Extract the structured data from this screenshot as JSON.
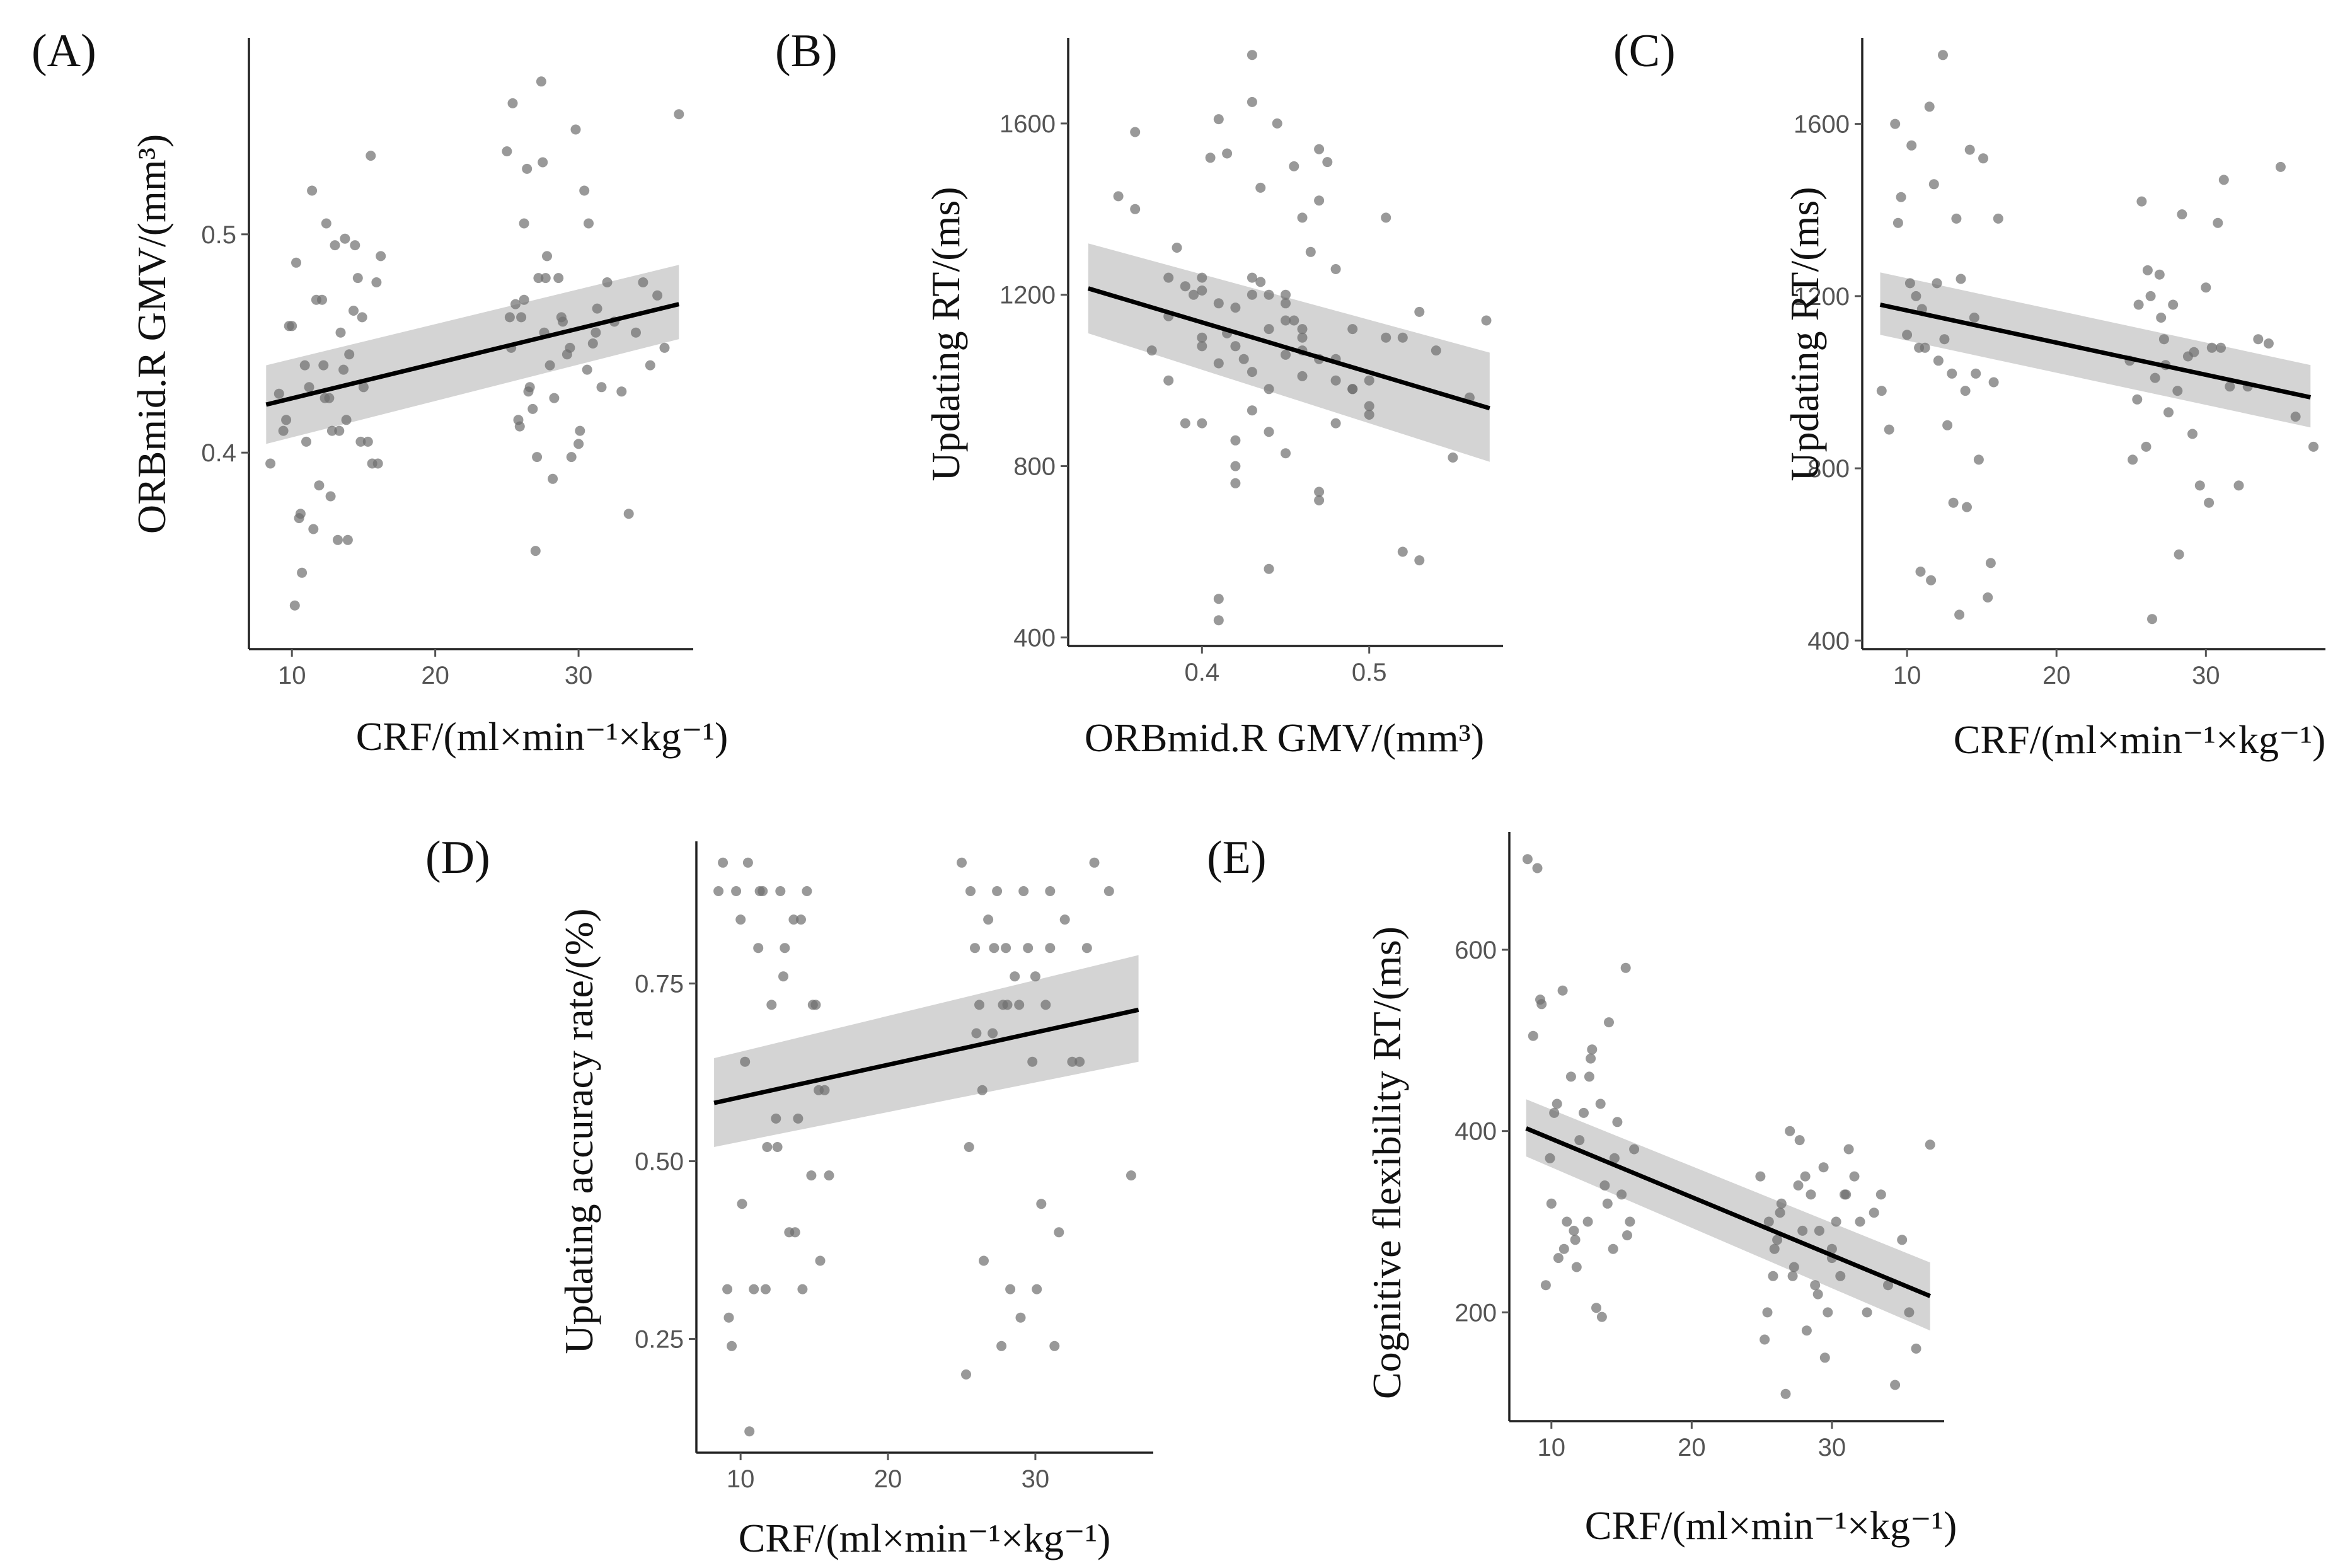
{
  "colors": {
    "points": "#6e6e6e",
    "ci_band": "#bdbdbd",
    "fit_line": "#000000",
    "axis": "#222222"
  },
  "chart_data": [
    {
      "panel": "(A)",
      "type": "scatter",
      "xlabel": "CRF/(ml×min⁻¹×kg⁻¹)",
      "ylabel": "ORBmid.R GMV/(mm³)",
      "xlim": [
        7,
        38
      ],
      "ylim": [
        0.31,
        0.59
      ],
      "xticks": [
        10,
        20,
        30
      ],
      "xtick_labels": [
        "10",
        "20",
        "30"
      ],
      "yticks": [
        0.4,
        0.5
      ],
      "ytick_labels": [
        "0.4",
        "0.5"
      ],
      "fit": {
        "x": [
          8.2,
          37
        ],
        "y": [
          0.422,
          0.468
        ],
        "ci_lower": [
          0.404,
          0.452
        ],
        "ci_upper": [
          0.44,
          0.486
        ]
      },
      "x": [
        8.5,
        9.1,
        9.6,
        10.0,
        10.2,
        10.5,
        10.7,
        11.0,
        11.2,
        11.4,
        11.7,
        11.9,
        12.2,
        12.4,
        12.6,
        12.8,
        13.0,
        13.2,
        13.4,
        13.6,
        13.8,
        14.0,
        14.3,
        14.6,
        15.0,
        15.3,
        15.6,
        15.9,
        16.2,
        9.8,
        10.3,
        10.9,
        11.5,
        12.1,
        12.7,
        13.3,
        13.9,
        14.4,
        14.9,
        15.5,
        16.0,
        9.4,
        10.6,
        12.3,
        13.7,
        14.8,
        25.0,
        25.2,
        25.4,
        25.6,
        25.8,
        26.0,
        26.2,
        26.4,
        26.6,
        26.8,
        27.0,
        27.2,
        27.4,
        27.6,
        27.8,
        28.0,
        28.3,
        28.6,
        28.9,
        29.2,
        29.5,
        29.8,
        30.1,
        30.4,
        30.7,
        31.0,
        31.3,
        31.6,
        32.0,
        32.5,
        33.0,
        33.5,
        34.0,
        34.5,
        35.0,
        35.5,
        36.0,
        37.0,
        25.3,
        25.9,
        26.5,
        27.1,
        27.7,
        28.2,
        28.8,
        29.4,
        30.0,
        30.6,
        31.2,
        26.2,
        27.5
      ],
      "y": [
        0.395,
        0.427,
        0.415,
        0.458,
        0.33,
        0.37,
        0.345,
        0.405,
        0.43,
        0.52,
        0.47,
        0.385,
        0.44,
        0.505,
        0.425,
        0.41,
        0.495,
        0.36,
        0.455,
        0.438,
        0.415,
        0.445,
        0.465,
        0.48,
        0.43,
        0.405,
        0.395,
        0.478,
        0.49,
        0.458,
        0.487,
        0.44,
        0.365,
        0.47,
        0.38,
        0.41,
        0.36,
        0.495,
        0.462,
        0.536,
        0.395,
        0.41,
        0.372,
        0.425,
        0.498,
        0.405,
        0.538,
        0.462,
        0.56,
        0.468,
        0.415,
        0.462,
        0.505,
        0.53,
        0.43,
        0.42,
        0.355,
        0.48,
        0.57,
        0.455,
        0.49,
        0.44,
        0.425,
        0.48,
        0.46,
        0.445,
        0.398,
        0.548,
        0.41,
        0.52,
        0.505,
        0.45,
        0.466,
        0.43,
        0.478,
        0.46,
        0.428,
        0.372,
        0.455,
        0.478,
        0.44,
        0.472,
        0.448,
        0.555,
        0.448,
        0.412,
        0.428,
        0.398,
        0.48,
        0.388,
        0.462,
        0.448,
        0.404,
        0.438,
        0.455,
        0.47,
        0.533
      ],
      "title": ""
    },
    {
      "panel": "(B)",
      "type": "scatter",
      "xlabel": "ORBmid.R GMV/(mm³)",
      "ylabel": "Updating RT/(ms)",
      "xlim": [
        0.32,
        0.58
      ],
      "ylim": [
        380,
        1800
      ],
      "xticks": [
        0.4,
        0.5
      ],
      "xtick_labels": [
        "0.4",
        "0.5"
      ],
      "yticks": [
        400,
        800,
        1200,
        1600
      ],
      "ytick_labels": [
        "400",
        "800",
        "1200",
        "1600"
      ],
      "fit": {
        "x": [
          0.332,
          0.572
        ],
        "y": [
          1215,
          935
        ],
        "ci_lower": [
          1110,
          810
        ],
        "ci_upper": [
          1320,
          1065
        ]
      },
      "x": [
        0.35,
        0.36,
        0.37,
        0.38,
        0.385,
        0.39,
        0.395,
        0.4,
        0.4,
        0.405,
        0.41,
        0.41,
        0.415,
        0.42,
        0.42,
        0.425,
        0.43,
        0.43,
        0.435,
        0.44,
        0.44,
        0.445,
        0.45,
        0.45,
        0.455,
        0.46,
        0.46,
        0.465,
        0.47,
        0.47,
        0.475,
        0.48,
        0.48,
        0.49,
        0.49,
        0.5,
        0.5,
        0.51,
        0.52,
        0.53,
        0.54,
        0.55,
        0.56,
        0.57,
        0.36,
        0.38,
        0.4,
        0.41,
        0.42,
        0.43,
        0.44,
        0.45,
        0.46,
        0.47,
        0.48,
        0.39,
        0.41,
        0.43,
        0.45,
        0.47,
        0.4,
        0.42,
        0.44,
        0.46,
        0.48,
        0.5,
        0.52,
        0.43,
        0.45,
        0.41,
        0.44,
        0.47,
        0.49,
        0.51,
        0.42,
        0.38,
        0.4,
        0.43,
        0.46,
        0.53,
        0.455,
        0.415,
        0.435
      ],
      "y": [
        1430,
        1580,
        1070,
        1150,
        1310,
        1220,
        1200,
        1240,
        900,
        1520,
        1610,
        1180,
        1530,
        1170,
        800,
        1050,
        1760,
        1200,
        1230,
        1120,
        880,
        1600,
        1180,
        1060,
        1140,
        1100,
        1380,
        1300,
        1540,
        1050,
        1510,
        1260,
        900,
        1120,
        980,
        1000,
        920,
        1380,
        1100,
        1160,
        1070,
        820,
        960,
        1140,
        1400,
        1240,
        1100,
        490,
        1080,
        1240,
        980,
        1200,
        1120,
        1420,
        1000,
        900,
        440,
        1020,
        1140,
        740,
        1080,
        860,
        560,
        1010,
        1050,
        940,
        600,
        1650,
        830,
        1040,
        1200,
        720,
        980,
        1100,
        760,
        1000,
        1210,
        930,
        1070,
        580,
        1500,
        1110,
        1450
      ],
      "title": ""
    },
    {
      "panel": "(C)",
      "type": "scatter",
      "xlabel": "CRF/(ml×min⁻¹×kg⁻¹)",
      "ylabel": "Updating RT/(ms)",
      "xlim": [
        7,
        38
      ],
      "ylim": [
        380,
        1800
      ],
      "xticks": [
        10,
        20,
        30
      ],
      "xtick_labels": [
        "10",
        "20",
        "30"
      ],
      "yticks": [
        400,
        800,
        1200,
        1600
      ],
      "ytick_labels": [
        "400",
        "800",
        "1200",
        "1600"
      ],
      "fit": {
        "x": [
          8.2,
          37
        ],
        "y": [
          1180,
          965
        ],
        "ci_lower": [
          1110,
          895
        ],
        "ci_upper": [
          1255,
          1040
        ]
      },
      "x": [
        8.3,
        8.8,
        9.2,
        9.6,
        10.0,
        10.3,
        10.6,
        10.9,
        11.2,
        11.5,
        11.8,
        12.1,
        12.4,
        12.7,
        13.0,
        13.3,
        13.6,
        13.9,
        14.2,
        14.5,
        14.8,
        15.1,
        15.4,
        15.8,
        16.1,
        9.4,
        10.8,
        11.6,
        12.5,
        13.5,
        14.6,
        15.6,
        10.2,
        11.0,
        12.0,
        13.1,
        14.0,
        24.9,
        25.1,
        25.4,
        25.7,
        26.0,
        26.3,
        26.6,
        26.9,
        27.2,
        27.5,
        27.8,
        28.1,
        28.4,
        28.8,
        29.2,
        29.6,
        30.0,
        30.4,
        30.8,
        31.2,
        31.6,
        32.2,
        32.8,
        33.5,
        34.2,
        35.0,
        36.0,
        37.2,
        25.5,
        26.4,
        27.3,
        28.2,
        29.1,
        30.2,
        31.0,
        26.1,
        27.0
      ],
      "y": [
        980,
        890,
        1600,
        1430,
        1110,
        1550,
        1200,
        560,
        1080,
        1640,
        1460,
        1050,
        1760,
        900,
        1020,
        1380,
        1240,
        980,
        1540,
        1150,
        820,
        1520,
        500,
        1000,
        1380,
        1370,
        1080,
        540,
        1100,
        460,
        1020,
        580,
        1230,
        1170,
        1230,
        720,
        710,
        1050,
        820,
        960,
        1420,
        850,
        1200,
        1010,
        1250,
        1100,
        930,
        1180,
        980,
        1390,
        1060,
        1070,
        760,
        1220,
        1080,
        1370,
        1470,
        990,
        760,
        990,
        1100,
        1090,
        1500,
        920,
        850,
        1180,
        450,
        1040,
        600,
        880,
        720,
        1080,
        1260,
        1150
      ],
      "title": ""
    },
    {
      "panel": "(D)",
      "type": "scatter",
      "xlabel": "CRF/(ml×min⁻¹×kg⁻¹)",
      "ylabel": "Updating accuracy rate/(%)",
      "xlim": [
        7,
        38
      ],
      "ylim": [
        0.09,
        0.95
      ],
      "xticks": [
        10,
        20,
        30
      ],
      "xtick_labels": [
        "10",
        "20",
        "30"
      ],
      "yticks": [
        0.25,
        0.5,
        0.75
      ],
      "ytick_labels": [
        "0.25",
        "0.50",
        "0.75"
      ],
      "fit": {
        "x": [
          8.2,
          37
        ],
        "y": [
          0.582,
          0.713
        ],
        "ci_lower": [
          0.52,
          0.64
        ],
        "ci_upper": [
          0.645,
          0.79
        ]
      },
      "x": [
        8.5,
        8.8,
        9.1,
        9.4,
        9.7,
        10.0,
        10.3,
        10.6,
        10.9,
        11.2,
        11.5,
        11.8,
        12.1,
        12.4,
        12.7,
        13.0,
        13.3,
        13.6,
        13.9,
        14.2,
        14.5,
        14.8,
        15.1,
        15.4,
        15.7,
        16.0,
        9.2,
        10.5,
        11.7,
        12.9,
        14.1,
        15.3,
        10.1,
        11.3,
        12.5,
        13.7,
        14.9,
        25.0,
        25.3,
        25.6,
        25.9,
        26.2,
        26.5,
        26.8,
        27.1,
        27.4,
        27.7,
        28.0,
        28.3,
        28.6,
        28.9,
        29.2,
        29.5,
        29.8,
        30.1,
        30.4,
        30.7,
        31.0,
        31.3,
        31.6,
        32.0,
        32.5,
        33.0,
        34.0,
        35.0,
        36.5,
        25.5,
        26.4,
        27.2,
        28.1,
        29.0,
        30.0,
        31.0,
        26.0,
        27.8,
        33.5
      ],
      "y": [
        0.88,
        0.92,
        0.32,
        0.24,
        0.88,
        0.84,
        0.64,
        0.12,
        0.32,
        0.8,
        0.88,
        0.52,
        0.72,
        0.56,
        0.88,
        0.8,
        0.4,
        0.84,
        0.56,
        0.32,
        0.88,
        0.48,
        0.72,
        0.36,
        0.6,
        0.48,
        0.28,
        0.92,
        0.32,
        0.76,
        0.84,
        0.6,
        0.44,
        0.88,
        0.52,
        0.4,
        0.72,
        0.92,
        0.2,
        0.88,
        0.8,
        0.72,
        0.36,
        0.84,
        0.68,
        0.88,
        0.24,
        0.8,
        0.32,
        0.76,
        0.72,
        0.88,
        0.8,
        0.64,
        0.32,
        0.44,
        0.72,
        0.8,
        0.24,
        0.4,
        0.84,
        0.64,
        0.64,
        0.92,
        0.88,
        0.48,
        0.52,
        0.6,
        0.8,
        0.72,
        0.28,
        0.76,
        0.88,
        0.68,
        0.72,
        0.8
      ],
      "title": ""
    },
    {
      "panel": "(E)",
      "type": "scatter",
      "xlabel": "CRF/(ml×min⁻¹×kg⁻¹)",
      "ylabel": "Cognitive flexibility  RT/(ms)",
      "xlim": [
        7,
        38
      ],
      "ylim": [
        80,
        730
      ],
      "xticks": [
        10,
        20,
        30
      ],
      "xtick_labels": [
        "10",
        "20",
        "30"
      ],
      "yticks": [
        200,
        400,
        600
      ],
      "ytick_labels": [
        "200",
        "400",
        "600"
      ],
      "fit": {
        "x": [
          8.2,
          37
        ],
        "y": [
          403,
          218
        ],
        "ci_lower": [
          372,
          180
        ],
        "ci_upper": [
          435,
          255
        ]
      },
      "x": [
        8.3,
        8.7,
        9.0,
        9.3,
        9.6,
        9.9,
        10.2,
        10.5,
        10.8,
        11.1,
        11.4,
        11.7,
        12.0,
        12.3,
        12.6,
        12.9,
        13.2,
        13.5,
        13.8,
        14.1,
        14.4,
        14.7,
        15.0,
        15.3,
        15.6,
        15.9,
        9.2,
        10.0,
        10.9,
        11.8,
        12.7,
        13.6,
        14.5,
        15.4,
        10.4,
        11.6,
        12.8,
        14.0,
        24.9,
        25.2,
        25.5,
        25.8,
        26.1,
        26.4,
        26.7,
        27.0,
        27.3,
        27.6,
        27.9,
        28.2,
        28.5,
        28.8,
        29.1,
        29.4,
        29.7,
        30.0,
        30.3,
        30.6,
        30.9,
        31.2,
        31.6,
        32.0,
        32.5,
        33.0,
        33.5,
        34.0,
        34.5,
        35.0,
        35.5,
        36.0,
        37.0,
        25.4,
        26.3,
        27.2,
        28.1,
        29.0,
        30.0,
        31.0,
        25.9,
        27.7,
        29.5
      ],
      "y": [
        700,
        505,
        690,
        540,
        230,
        370,
        420,
        260,
        555,
        300,
        460,
        280,
        390,
        420,
        300,
        490,
        205,
        430,
        340,
        520,
        270,
        410,
        330,
        580,
        300,
        380,
        545,
        320,
        270,
        250,
        460,
        195,
        370,
        285,
        430,
        290,
        480,
        320,
        350,
        170,
        300,
        240,
        280,
        320,
        110,
        400,
        250,
        340,
        290,
        180,
        330,
        230,
        290,
        360,
        200,
        270,
        300,
        240,
        330,
        380,
        350,
        300,
        200,
        310,
        330,
        230,
        120,
        280,
        200,
        160,
        385,
        200,
        310,
        240,
        350,
        220,
        260,
        330,
        270,
        390,
        150
      ],
      "title": ""
    }
  ]
}
